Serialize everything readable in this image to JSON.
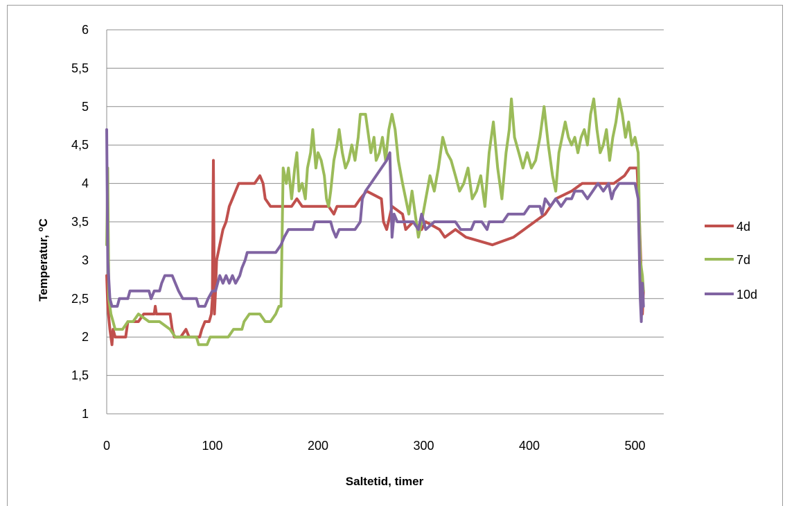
{
  "chart_data": {
    "type": "line",
    "title": "",
    "xlabel": "Saltetid, timer",
    "ylabel_main": "Temperatur, ",
    "ylabel_sup": "o",
    "ylabel_unit": "C",
    "xlim": [
      0,
      510
    ],
    "ylim": [
      1,
      6
    ],
    "x_ticks": [
      "0",
      "100",
      "200",
      "300",
      "400",
      "500"
    ],
    "y_ticks": [
      "1",
      "1,5",
      "2",
      "2,5",
      "3",
      "3,5",
      "4",
      "4,5",
      "5",
      "5,5",
      "6"
    ],
    "grid": "horizontal",
    "legend_position": "right",
    "series": [
      {
        "name": "4d",
        "color": "#c0504d",
        "points": [
          [
            0,
            2.8
          ],
          [
            1,
            2.4
          ],
          [
            3,
            2.1
          ],
          [
            5,
            1.9
          ],
          [
            6,
            2.1
          ],
          [
            8,
            2.0
          ],
          [
            12,
            2.0
          ],
          [
            18,
            2.0
          ],
          [
            20,
            2.2
          ],
          [
            30,
            2.2
          ],
          [
            35,
            2.3
          ],
          [
            45,
            2.3
          ],
          [
            46,
            2.4
          ],
          [
            47,
            2.3
          ],
          [
            60,
            2.3
          ],
          [
            62,
            2.1
          ],
          [
            64,
            2.0
          ],
          [
            70,
            2.0
          ],
          [
            75,
            2.1
          ],
          [
            78,
            2.0
          ],
          [
            88,
            2.0
          ],
          [
            90,
            2.1
          ],
          [
            93,
            2.2
          ],
          [
            97,
            2.2
          ],
          [
            99,
            2.3
          ],
          [
            100,
            2.5
          ],
          [
            101,
            4.3
          ],
          [
            102,
            2.3
          ],
          [
            103,
            2.6
          ],
          [
            104,
            3.0
          ],
          [
            107,
            3.2
          ],
          [
            110,
            3.4
          ],
          [
            113,
            3.5
          ],
          [
            116,
            3.7
          ],
          [
            119,
            3.8
          ],
          [
            122,
            3.9
          ],
          [
            125,
            4.0
          ],
          [
            140,
            4.0
          ],
          [
            145,
            4.1
          ],
          [
            148,
            4.0
          ],
          [
            150,
            3.8
          ],
          [
            155,
            3.7
          ],
          [
            175,
            3.7
          ],
          [
            180,
            3.8
          ],
          [
            185,
            3.7
          ],
          [
            210,
            3.7
          ],
          [
            215,
            3.6
          ],
          [
            218,
            3.7
          ],
          [
            235,
            3.7
          ],
          [
            240,
            3.8
          ],
          [
            246,
            3.9
          ],
          [
            260,
            3.8
          ],
          [
            262,
            3.5
          ],
          [
            265,
            3.4
          ],
          [
            270,
            3.7
          ],
          [
            280,
            3.6
          ],
          [
            283,
            3.4
          ],
          [
            290,
            3.5
          ],
          [
            298,
            3.4
          ],
          [
            302,
            3.5
          ],
          [
            315,
            3.4
          ],
          [
            320,
            3.3
          ],
          [
            330,
            3.4
          ],
          [
            340,
            3.3
          ],
          [
            365,
            3.2
          ],
          [
            385,
            3.3
          ],
          [
            395,
            3.4
          ],
          [
            405,
            3.5
          ],
          [
            415,
            3.6
          ],
          [
            420,
            3.7
          ],
          [
            425,
            3.8
          ],
          [
            440,
            3.9
          ],
          [
            450,
            4.0
          ],
          [
            480,
            4.0
          ],
          [
            490,
            4.1
          ],
          [
            495,
            4.2
          ],
          [
            502,
            4.2
          ],
          [
            504,
            3.6
          ],
          [
            506,
            2.8
          ],
          [
            507,
            2.3
          ],
          [
            508,
            2.6
          ]
        ]
      },
      {
        "name": "7d",
        "color": "#9bbb59",
        "points": [
          [
            0,
            3.2
          ],
          [
            1,
            4.2
          ],
          [
            2,
            2.5
          ],
          [
            4,
            2.3
          ],
          [
            6,
            2.2
          ],
          [
            8,
            2.1
          ],
          [
            15,
            2.1
          ],
          [
            20,
            2.2
          ],
          [
            25,
            2.2
          ],
          [
            30,
            2.3
          ],
          [
            40,
            2.2
          ],
          [
            50,
            2.2
          ],
          [
            60,
            2.1
          ],
          [
            65,
            2.0
          ],
          [
            85,
            2.0
          ],
          [
            87,
            1.9
          ],
          [
            95,
            1.9
          ],
          [
            98,
            2.0
          ],
          [
            115,
            2.0
          ],
          [
            120,
            2.1
          ],
          [
            128,
            2.1
          ],
          [
            130,
            2.2
          ],
          [
            135,
            2.3
          ],
          [
            145,
            2.3
          ],
          [
            150,
            2.2
          ],
          [
            155,
            2.2
          ],
          [
            160,
            2.3
          ],
          [
            163,
            2.4
          ],
          [
            165,
            2.4
          ],
          [
            167,
            4.2
          ],
          [
            170,
            4.0
          ],
          [
            172,
            4.2
          ],
          [
            175,
            3.8
          ],
          [
            178,
            4.2
          ],
          [
            180,
            4.4
          ],
          [
            182,
            3.9
          ],
          [
            185,
            4.0
          ],
          [
            188,
            3.8
          ],
          [
            190,
            4.2
          ],
          [
            193,
            4.4
          ],
          [
            195,
            4.7
          ],
          [
            198,
            4.2
          ],
          [
            200,
            4.4
          ],
          [
            203,
            4.3
          ],
          [
            206,
            4.1
          ],
          [
            208,
            3.8
          ],
          [
            210,
            3.7
          ],
          [
            212,
            3.9
          ],
          [
            215,
            4.3
          ],
          [
            218,
            4.5
          ],
          [
            220,
            4.7
          ],
          [
            223,
            4.4
          ],
          [
            226,
            4.2
          ],
          [
            229,
            4.3
          ],
          [
            232,
            4.5
          ],
          [
            235,
            4.3
          ],
          [
            238,
            4.6
          ],
          [
            240,
            4.9
          ],
          [
            245,
            4.9
          ],
          [
            248,
            4.6
          ],
          [
            250,
            4.4
          ],
          [
            253,
            4.6
          ],
          [
            255,
            4.3
          ],
          [
            258,
            4.4
          ],
          [
            261,
            4.6
          ],
          [
            264,
            4.3
          ],
          [
            267,
            4.7
          ],
          [
            270,
            4.9
          ],
          [
            273,
            4.7
          ],
          [
            276,
            4.3
          ],
          [
            280,
            4.0
          ],
          [
            283,
            3.8
          ],
          [
            286,
            3.6
          ],
          [
            289,
            3.9
          ],
          [
            292,
            3.6
          ],
          [
            295,
            3.3
          ],
          [
            298,
            3.5
          ],
          [
            302,
            3.8
          ],
          [
            306,
            4.1
          ],
          [
            310,
            3.9
          ],
          [
            314,
            4.2
          ],
          [
            318,
            4.6
          ],
          [
            322,
            4.4
          ],
          [
            326,
            4.3
          ],
          [
            330,
            4.1
          ],
          [
            334,
            3.9
          ],
          [
            338,
            4.0
          ],
          [
            342,
            4.2
          ],
          [
            346,
            3.8
          ],
          [
            350,
            3.9
          ],
          [
            354,
            4.1
          ],
          [
            358,
            3.7
          ],
          [
            362,
            4.4
          ],
          [
            366,
            4.8
          ],
          [
            370,
            4.2
          ],
          [
            374,
            3.8
          ],
          [
            378,
            4.4
          ],
          [
            381,
            4.7
          ],
          [
            383,
            5.1
          ],
          [
            386,
            4.6
          ],
          [
            390,
            4.4
          ],
          [
            394,
            4.2
          ],
          [
            398,
            4.4
          ],
          [
            402,
            4.2
          ],
          [
            406,
            4.3
          ],
          [
            410,
            4.6
          ],
          [
            414,
            5.0
          ],
          [
            418,
            4.5
          ],
          [
            422,
            4.1
          ],
          [
            425,
            3.9
          ],
          [
            428,
            4.4
          ],
          [
            431,
            4.6
          ],
          [
            434,
            4.8
          ],
          [
            437,
            4.6
          ],
          [
            440,
            4.5
          ],
          [
            443,
            4.6
          ],
          [
            446,
            4.4
          ],
          [
            449,
            4.6
          ],
          [
            452,
            4.7
          ],
          [
            455,
            4.5
          ],
          [
            458,
            4.9
          ],
          [
            461,
            5.1
          ],
          [
            464,
            4.7
          ],
          [
            467,
            4.4
          ],
          [
            470,
            4.5
          ],
          [
            473,
            4.7
          ],
          [
            476,
            4.3
          ],
          [
            479,
            4.6
          ],
          [
            482,
            4.8
          ],
          [
            485,
            5.1
          ],
          [
            488,
            4.9
          ],
          [
            491,
            4.6
          ],
          [
            494,
            4.8
          ],
          [
            497,
            4.5
          ],
          [
            500,
            4.6
          ],
          [
            503,
            4.4
          ],
          [
            505,
            3.0
          ],
          [
            507,
            2.8
          ],
          [
            508,
            2.6
          ]
        ]
      },
      {
        "name": "10d",
        "color": "#8064a2",
        "points": [
          [
            0,
            4.7
          ],
          [
            1,
            3.0
          ],
          [
            3,
            2.5
          ],
          [
            5,
            2.4
          ],
          [
            10,
            2.4
          ],
          [
            12,
            2.5
          ],
          [
            20,
            2.5
          ],
          [
            22,
            2.6
          ],
          [
            40,
            2.6
          ],
          [
            42,
            2.5
          ],
          [
            45,
            2.6
          ],
          [
            50,
            2.6
          ],
          [
            52,
            2.7
          ],
          [
            55,
            2.8
          ],
          [
            62,
            2.8
          ],
          [
            65,
            2.7
          ],
          [
            68,
            2.6
          ],
          [
            72,
            2.5
          ],
          [
            85,
            2.5
          ],
          [
            87,
            2.4
          ],
          [
            93,
            2.4
          ],
          [
            96,
            2.5
          ],
          [
            100,
            2.6
          ],
          [
            103,
            2.6
          ],
          [
            105,
            2.7
          ],
          [
            107,
            2.8
          ],
          [
            110,
            2.7
          ],
          [
            113,
            2.8
          ],
          [
            116,
            2.7
          ],
          [
            119,
            2.8
          ],
          [
            122,
            2.7
          ],
          [
            126,
            2.8
          ],
          [
            128,
            2.9
          ],
          [
            131,
            3.0
          ],
          [
            133,
            3.1
          ],
          [
            160,
            3.1
          ],
          [
            165,
            3.2
          ],
          [
            168,
            3.3
          ],
          [
            172,
            3.4
          ],
          [
            195,
            3.4
          ],
          [
            197,
            3.5
          ],
          [
            212,
            3.5
          ],
          [
            214,
            3.4
          ],
          [
            217,
            3.3
          ],
          [
            220,
            3.4
          ],
          [
            235,
            3.4
          ],
          [
            240,
            3.5
          ],
          [
            242,
            3.8
          ],
          [
            245,
            3.9
          ],
          [
            250,
            4.0
          ],
          [
            255,
            4.1
          ],
          [
            260,
            4.2
          ],
          [
            265,
            4.3
          ],
          [
            268,
            4.4
          ],
          [
            270,
            3.3
          ],
          [
            272,
            3.6
          ],
          [
            275,
            3.5
          ],
          [
            290,
            3.5
          ],
          [
            295,
            3.4
          ],
          [
            298,
            3.6
          ],
          [
            302,
            3.4
          ],
          [
            310,
            3.5
          ],
          [
            330,
            3.5
          ],
          [
            335,
            3.4
          ],
          [
            345,
            3.4
          ],
          [
            348,
            3.5
          ],
          [
            355,
            3.5
          ],
          [
            360,
            3.4
          ],
          [
            362,
            3.5
          ],
          [
            375,
            3.5
          ],
          [
            380,
            3.6
          ],
          [
            395,
            3.6
          ],
          [
            400,
            3.7
          ],
          [
            410,
            3.7
          ],
          [
            412,
            3.6
          ],
          [
            415,
            3.8
          ],
          [
            420,
            3.7
          ],
          [
            425,
            3.8
          ],
          [
            430,
            3.7
          ],
          [
            435,
            3.8
          ],
          [
            440,
            3.8
          ],
          [
            443,
            3.9
          ],
          [
            450,
            3.9
          ],
          [
            455,
            3.8
          ],
          [
            460,
            3.9
          ],
          [
            465,
            4.0
          ],
          [
            470,
            3.9
          ],
          [
            475,
            4.0
          ],
          [
            478,
            3.8
          ],
          [
            480,
            3.9
          ],
          [
            485,
            4.0
          ],
          [
            500,
            4.0
          ],
          [
            503,
            3.8
          ],
          [
            505,
            2.5
          ],
          [
            506,
            2.2
          ],
          [
            507,
            2.7
          ],
          [
            508,
            2.4
          ]
        ]
      }
    ]
  }
}
